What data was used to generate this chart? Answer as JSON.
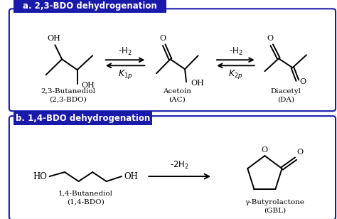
{
  "bg_color": "#ffffff",
  "box_color": "#1a1aaa",
  "box_text_color": "#ffffff",
  "text_color": "#000000",
  "line_color": "#000000",
  "title_a": "a. 2,3-BDO dehydrogenation",
  "title_b": "b. 1,4-BDO dehydrogenation",
  "arrow1_label_top": "-H$_2$",
  "arrow1_label_bot": "$K_{1p}$",
  "arrow2_label_top": "-H$_2$",
  "arrow2_label_bot": "$K_{2p}$",
  "arrow3_label_top": "-2H$_2$",
  "figsize": [
    4.74,
    3.08
  ],
  "dpi": 100
}
